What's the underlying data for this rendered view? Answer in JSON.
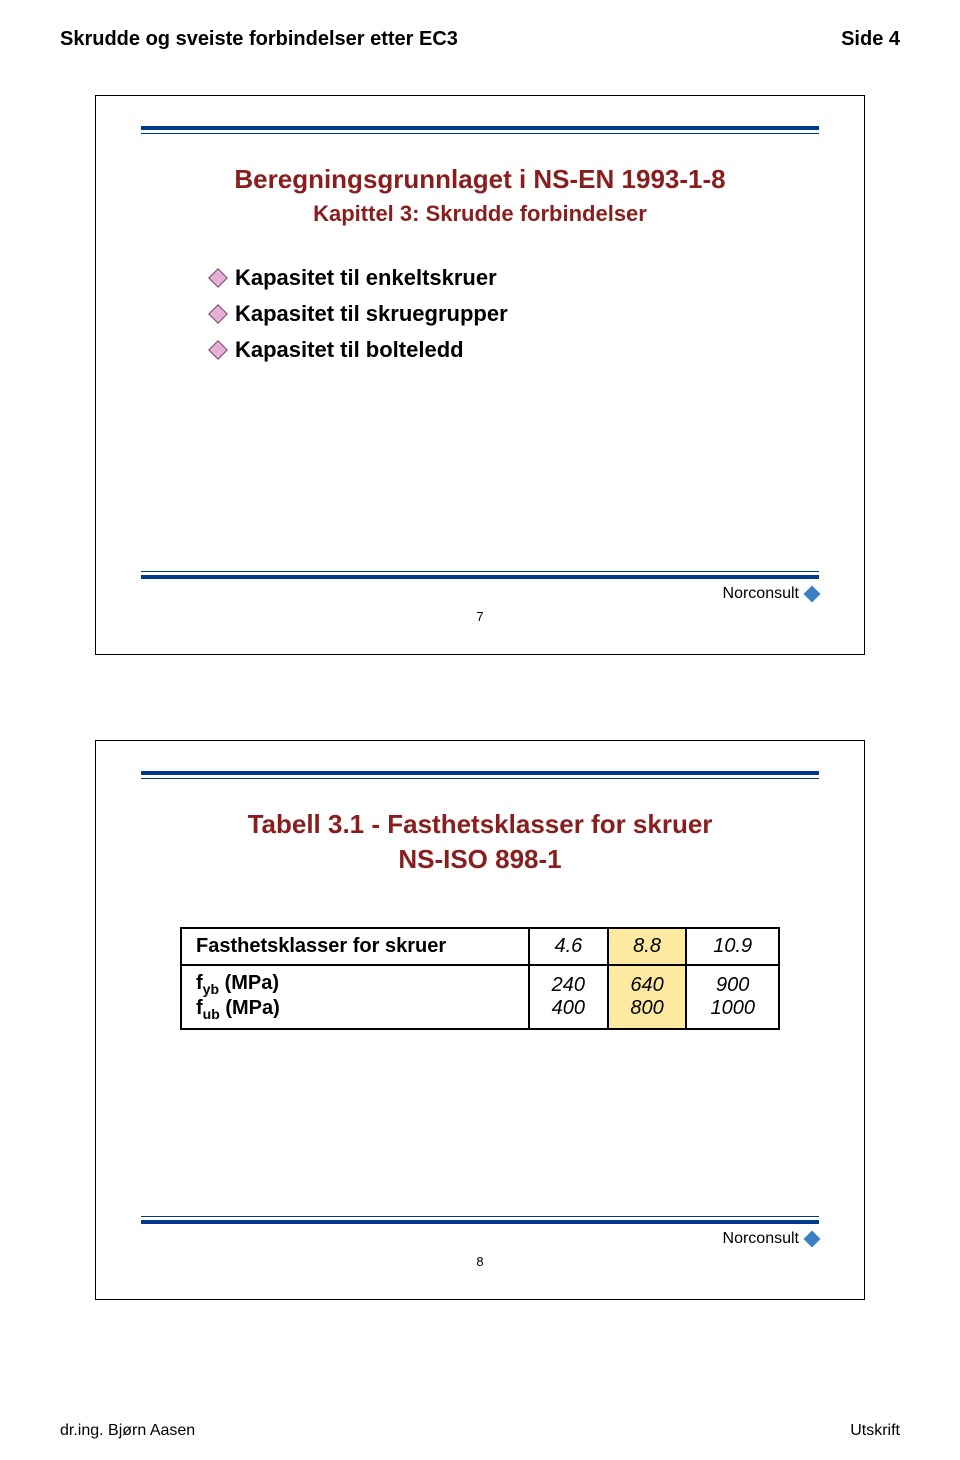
{
  "header": {
    "title": "Skrudde og sveiste forbindelser etter EC3",
    "side_label": "Side 4"
  },
  "footer": {
    "author": "dr.ing. Bjørn Aasen",
    "print": "Utskrift"
  },
  "slide1": {
    "title": "Beregningsgrunnlaget i NS-EN 1993-1-8",
    "subtitle": "Kapittel 3: Skrudde forbindelser",
    "bullets": [
      "Kapasitet til enkeltskruer",
      "Kapasitet til skruegrupper",
      "Kapasitet til bolteledd"
    ],
    "brand": "Norconsult",
    "page_num": "7"
  },
  "slide2": {
    "title": "Tabell 3.1 - Fasthetsklasser for skruer",
    "subtitle": "NS-ISO 898-1",
    "brand": "Norconsult",
    "page_num": "8",
    "table": {
      "row1_label": "Fasthetsklasser for skruer",
      "row2_label_a": "f",
      "row2_sub_a": "yb",
      "row2_unit": " (MPa)",
      "row2_label_b": "f",
      "row2_sub_b": "ub",
      "c": [
        "4.6",
        "8.8",
        "10.9"
      ],
      "v1": [
        "240",
        "640",
        "900"
      ],
      "v2": [
        "400",
        "800",
        "1000"
      ]
    }
  },
  "colors": {
    "title_red": "#8a1e1e",
    "rule_blue": "#003a8c",
    "highlight_yellow": "#fde9a0",
    "diamond_pink": "#e6b0d4",
    "brand_diamond": "#3b7fc4"
  }
}
